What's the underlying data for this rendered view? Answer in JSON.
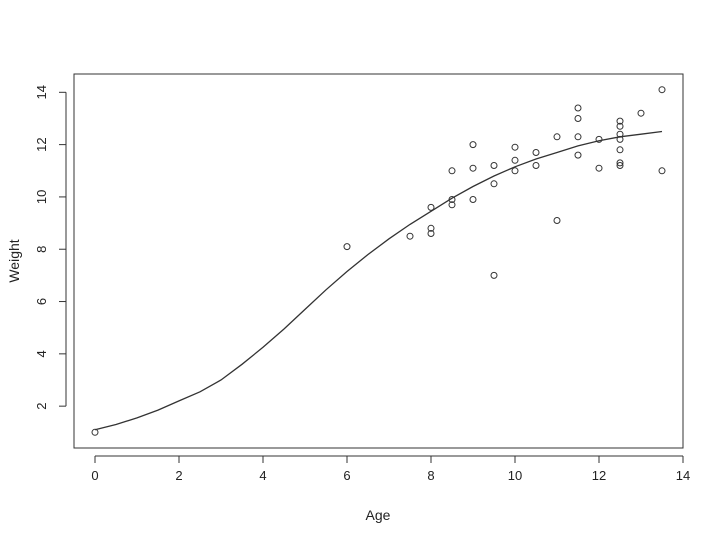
{
  "chart_data": {
    "type": "scatter",
    "title": "",
    "xlabel": "Age",
    "ylabel": "Weight",
    "xlim": [
      -0.5,
      14
    ],
    "ylim": [
      0.4,
      14.7
    ],
    "x_ticks": [
      0,
      2,
      4,
      6,
      8,
      10,
      12,
      14
    ],
    "y_ticks": [
      2,
      4,
      6,
      8,
      10,
      12,
      14
    ],
    "grid": false,
    "legend": "none",
    "colors": {
      "points": "#333333",
      "curve": "#333333",
      "frame": "#333333"
    },
    "points": [
      {
        "x": 0,
        "y": 1.0
      },
      {
        "x": 6,
        "y": 8.1
      },
      {
        "x": 7.5,
        "y": 8.5
      },
      {
        "x": 8,
        "y": 8.6
      },
      {
        "x": 8,
        "y": 8.8
      },
      {
        "x": 8,
        "y": 9.6
      },
      {
        "x": 8.5,
        "y": 9.7
      },
      {
        "x": 8.5,
        "y": 9.9
      },
      {
        "x": 8.5,
        "y": 11.0
      },
      {
        "x": 9,
        "y": 9.9
      },
      {
        "x": 9,
        "y": 11.1
      },
      {
        "x": 9,
        "y": 12.0
      },
      {
        "x": 9.5,
        "y": 7.0
      },
      {
        "x": 9.5,
        "y": 10.5
      },
      {
        "x": 9.5,
        "y": 11.2
      },
      {
        "x": 10,
        "y": 11.0
      },
      {
        "x": 10,
        "y": 11.4
      },
      {
        "x": 10,
        "y": 11.9
      },
      {
        "x": 10.5,
        "y": 11.2
      },
      {
        "x": 10.5,
        "y": 11.7
      },
      {
        "x": 11,
        "y": 9.1
      },
      {
        "x": 11,
        "y": 12.3
      },
      {
        "x": 11.5,
        "y": 11.6
      },
      {
        "x": 11.5,
        "y": 12.3
      },
      {
        "x": 11.5,
        "y": 13.0
      },
      {
        "x": 11.5,
        "y": 13.4
      },
      {
        "x": 12,
        "y": 11.1
      },
      {
        "x": 12,
        "y": 12.2
      },
      {
        "x": 12.5,
        "y": 11.2
      },
      {
        "x": 12.5,
        "y": 11.3
      },
      {
        "x": 12.5,
        "y": 11.8
      },
      {
        "x": 12.5,
        "y": 12.2
      },
      {
        "x": 12.5,
        "y": 12.4
      },
      {
        "x": 12.5,
        "y": 12.7
      },
      {
        "x": 12.5,
        "y": 12.9
      },
      {
        "x": 13,
        "y": 13.2
      },
      {
        "x": 13.5,
        "y": 11.0
      },
      {
        "x": 13.5,
        "y": 14.1
      }
    ],
    "fitted_curve": {
      "x": [
        0,
        0.5,
        1,
        1.5,
        2,
        2.5,
        3,
        3.5,
        4,
        4.5,
        5,
        5.5,
        6,
        6.5,
        7,
        7.5,
        8,
        8.5,
        9,
        9.5,
        10,
        10.5,
        11,
        11.5,
        12,
        12.5,
        13,
        13.5
      ],
      "y": [
        1.1,
        1.3,
        1.55,
        1.85,
        2.2,
        2.55,
        3.0,
        3.6,
        4.25,
        4.95,
        5.7,
        6.45,
        7.15,
        7.8,
        8.4,
        8.95,
        9.45,
        9.95,
        10.4,
        10.8,
        11.15,
        11.45,
        11.7,
        11.95,
        12.15,
        12.3,
        12.4,
        12.5
      ]
    }
  }
}
